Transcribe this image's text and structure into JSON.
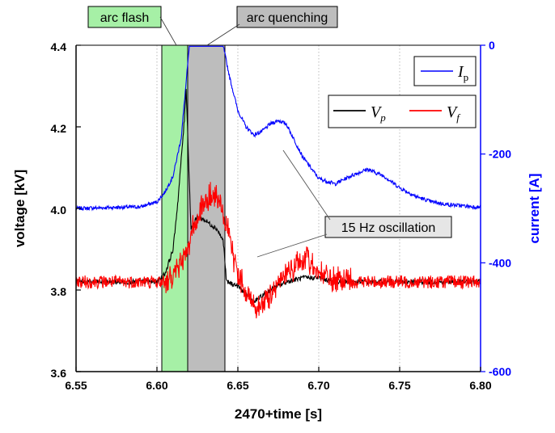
{
  "chart_data": {
    "type": "line",
    "xlabel": "2470+time [s]",
    "ylabel": "voltage [kV]",
    "y2label": "current [A]",
    "xlim": [
      6.55,
      6.8
    ],
    "ylim": [
      3.6,
      4.4
    ],
    "y2lim": [
      -600,
      0
    ],
    "x_ticks": [
      "6.55",
      "6.60",
      "6.65",
      "6.70",
      "6.75",
      "6.80"
    ],
    "y_ticks": [
      "3.6",
      "3.8",
      "4.0",
      "4.2",
      "4.4"
    ],
    "y2_ticks": [
      "-600",
      "-400",
      "-200",
      "0"
    ],
    "grid": "vertical dotted",
    "colors": {
      "Vp": "#000000",
      "Vf": "#ff0000",
      "Ip": "#0000ff",
      "arc_flash": "#a6f0a6",
      "arc_quenching": "#bdbdbd"
    },
    "shaded_regions": [
      {
        "label": "arc flash",
        "x_start": 6.603,
        "x_end": 6.619
      },
      {
        "label": "arc quenching",
        "x_start": 6.619,
        "x_end": 6.642
      }
    ],
    "series": [
      {
        "name": "V",
        "subscript": "p",
        "axis": "left",
        "color": "#000000",
        "x": [
          6.55,
          6.58,
          6.6,
          6.605,
          6.61,
          6.613,
          6.617,
          6.618,
          6.621,
          6.625,
          6.63,
          6.637,
          6.641,
          6.643,
          6.65,
          6.655,
          6.66,
          6.67,
          6.68,
          6.69,
          6.7,
          6.71,
          6.75,
          6.8
        ],
        "y": [
          3.82,
          3.82,
          3.82,
          3.84,
          3.9,
          4.02,
          4.22,
          4.3,
          3.95,
          3.98,
          3.97,
          3.95,
          3.92,
          3.82,
          3.81,
          3.79,
          3.77,
          3.8,
          3.82,
          3.83,
          3.83,
          3.82,
          3.82,
          3.82
        ]
      },
      {
        "name": "V",
        "subscript": "f",
        "axis": "left",
        "color": "#ff0000",
        "x": [
          6.55,
          6.58,
          6.6,
          6.605,
          6.61,
          6.615,
          6.62,
          6.625,
          6.63,
          6.635,
          6.64,
          6.645,
          6.65,
          6.655,
          6.66,
          6.665,
          6.67,
          6.675,
          6.68,
          6.685,
          6.69,
          6.695,
          6.7,
          6.705,
          6.71,
          6.72,
          6.75,
          6.8
        ],
        "y": [
          3.82,
          3.82,
          3.82,
          3.82,
          3.84,
          3.87,
          3.92,
          3.98,
          4.02,
          4.03,
          4.0,
          3.92,
          3.84,
          3.8,
          3.76,
          3.76,
          3.79,
          3.82,
          3.84,
          3.86,
          3.87,
          3.87,
          3.85,
          3.83,
          3.82,
          3.82,
          3.82,
          3.82
        ]
      },
      {
        "name": "I",
        "subscript": "p",
        "axis": "right",
        "color": "#0000ff",
        "x": [
          6.55,
          6.59,
          6.6,
          6.605,
          6.61,
          6.615,
          6.62,
          6.625,
          6.63,
          6.635,
          6.641,
          6.645,
          6.65,
          6.655,
          6.66,
          6.665,
          6.67,
          6.675,
          6.68,
          6.685,
          6.69,
          6.7,
          6.71,
          6.72,
          6.73,
          6.74,
          6.75,
          6.76,
          6.77,
          6.78,
          6.8
        ],
        "y": [
          -300,
          -297,
          -288,
          -270,
          -240,
          -170,
          -2,
          -2,
          -2,
          -2,
          -2,
          -60,
          -120,
          -150,
          -165,
          -158,
          -145,
          -138,
          -145,
          -175,
          -205,
          -245,
          -255,
          -240,
          -228,
          -240,
          -262,
          -278,
          -288,
          -293,
          -298
        ]
      }
    ],
    "annotations": [
      {
        "text": "15 Hz oscillation"
      }
    ]
  }
}
